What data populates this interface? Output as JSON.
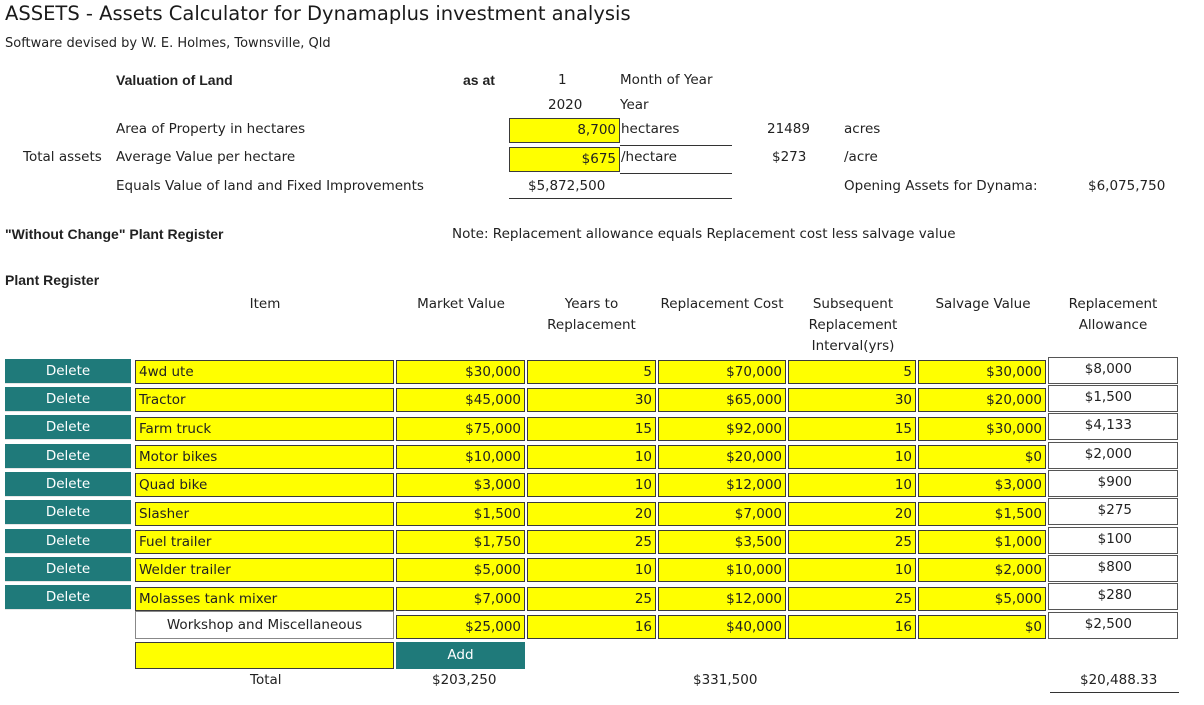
{
  "header": {
    "title": "ASSETS - Assets Calculator for Dynamaplus investment analysis",
    "subtitle": "Software devised by W. E. Holmes, Townsville, Qld"
  },
  "valuation": {
    "heading": "Valuation of Land",
    "as_at_label": "as at",
    "month_value": "1",
    "month_label": "Month of Year",
    "year_value": "2020",
    "year_label": "Year",
    "area_label": "Area of Property in hectares",
    "area_value": "8,700",
    "area_unit": "hectares",
    "area_acres": "21489",
    "acres_label": "acres",
    "total_assets_label": "Total assets",
    "avg_label": "Average Value per hectare",
    "avg_value": "$675",
    "avg_unit": "/hectare",
    "avg_per_acre": "$273",
    "per_acre_label": "/acre",
    "equals_label": "Equals Value of land and Fixed Improvements",
    "equals_value": "$5,872,500",
    "opening_label": "Opening Assets for Dynama:",
    "opening_value": "$6,075,750"
  },
  "without_change_label": "\"Without Change\" Plant Register",
  "note": "Note: Replacement allowance equals Replacement cost less salvage value",
  "plant_register": {
    "heading": "Plant Register",
    "columns": {
      "item": "Item",
      "market": "Market Value",
      "years1": "Years to",
      "years2": "Replacement",
      "repl_cost": "Replacement Cost",
      "subseq1": "Subsequent",
      "subseq2": "Replacement",
      "subseq3": "Interval(yrs)",
      "salvage": "Salvage Value",
      "allow1": "Replacement",
      "allow2": "Allowance"
    },
    "delete_label": "Delete",
    "rows": [
      {
        "item": "4wd ute",
        "market": "$30,000",
        "years": "5",
        "cost": "$70,000",
        "interval": "5",
        "salvage": "$30,000",
        "allowance": "$8,000"
      },
      {
        "item": "Tractor",
        "market": "$45,000",
        "years": "30",
        "cost": "$65,000",
        "interval": "30",
        "salvage": "$20,000",
        "allowance": "$1,500"
      },
      {
        "item": "Farm truck",
        "market": "$75,000",
        "years": "15",
        "cost": "$92,000",
        "interval": "15",
        "salvage": "$30,000",
        "allowance": "$4,133"
      },
      {
        "item": "Motor bikes",
        "market": "$10,000",
        "years": "10",
        "cost": "$20,000",
        "interval": "10",
        "salvage": "$0",
        "allowance": "$2,000"
      },
      {
        "item": "Quad bike",
        "market": "$3,000",
        "years": "10",
        "cost": "$12,000",
        "interval": "10",
        "salvage": "$3,000",
        "allowance": "$900"
      },
      {
        "item": "Slasher",
        "market": "$1,500",
        "years": "20",
        "cost": "$7,000",
        "interval": "20",
        "salvage": "$1,500",
        "allowance": "$275"
      },
      {
        "item": "Fuel trailer",
        "market": "$1,750",
        "years": "25",
        "cost": "$3,500",
        "interval": "25",
        "salvage": "$1,000",
        "allowance": "$100"
      },
      {
        "item": "Welder trailer",
        "market": "$5,000",
        "years": "10",
        "cost": "$10,000",
        "interval": "10",
        "salvage": "$2,000",
        "allowance": "$800"
      },
      {
        "item": "Molasses tank mixer",
        "market": "$7,000",
        "years": "25",
        "cost": "$12,000",
        "interval": "25",
        "salvage": "$5,000",
        "allowance": "$280"
      }
    ],
    "workshop": {
      "item": "Workshop and Miscellaneous",
      "market": "$25,000",
      "years": "16",
      "cost": "$40,000",
      "interval": "16",
      "salvage": "$0",
      "allowance": "$2,500"
    },
    "new_item_value": "",
    "add_label": "Add",
    "total_label": "Total",
    "total_market": "$203,250",
    "total_cost": "$331,500",
    "total_allowance": "$20,488.33"
  }
}
